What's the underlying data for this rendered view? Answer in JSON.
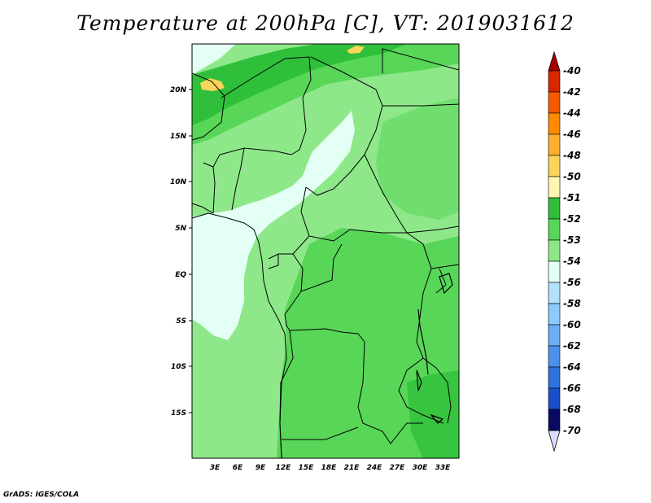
{
  "title": "Temperature at 200hPa [C], VT: 2019031612",
  "credit": "GrADS: IGES/COLA",
  "lat_labels": [
    "20N",
    "15N",
    "10N",
    "5N",
    "EQ",
    "5S",
    "10S",
    "15S"
  ],
  "lon_labels": [
    "3E",
    "6E",
    "9E",
    "12E",
    "15E",
    "18E",
    "21E",
    "24E",
    "27E",
    "30E",
    "33E"
  ],
  "colorbar": {
    "labels": [
      "-40",
      "-42",
      "-44",
      "-46",
      "-48",
      "-50",
      "-51",
      "-52",
      "-53",
      "-54",
      "-56",
      "-58",
      "-60",
      "-62",
      "-64",
      "-66",
      "-68",
      "-70"
    ],
    "colors": [
      "#a50000",
      "#d92500",
      "#f55a00",
      "#ff8a00",
      "#fdae2e",
      "#fcd45a",
      "#fff6b0",
      "#2fbf3a",
      "#58d658",
      "#8ee88a",
      "#e4fff4",
      "#b2e2ff",
      "#8ccaff",
      "#6aaef5",
      "#4c92ea",
      "#2d73dd",
      "#1a4fc7",
      "#0d2e8e",
      "#0a0a63",
      "#dcdcff"
    ]
  },
  "map_colors": {
    "band_52": "#2fbf3a",
    "band_53": "#58d658",
    "band_54": "#8ee88a",
    "band_below": "#e4fff4",
    "band_warm": "#fcd45a",
    "border": "#000000"
  }
}
